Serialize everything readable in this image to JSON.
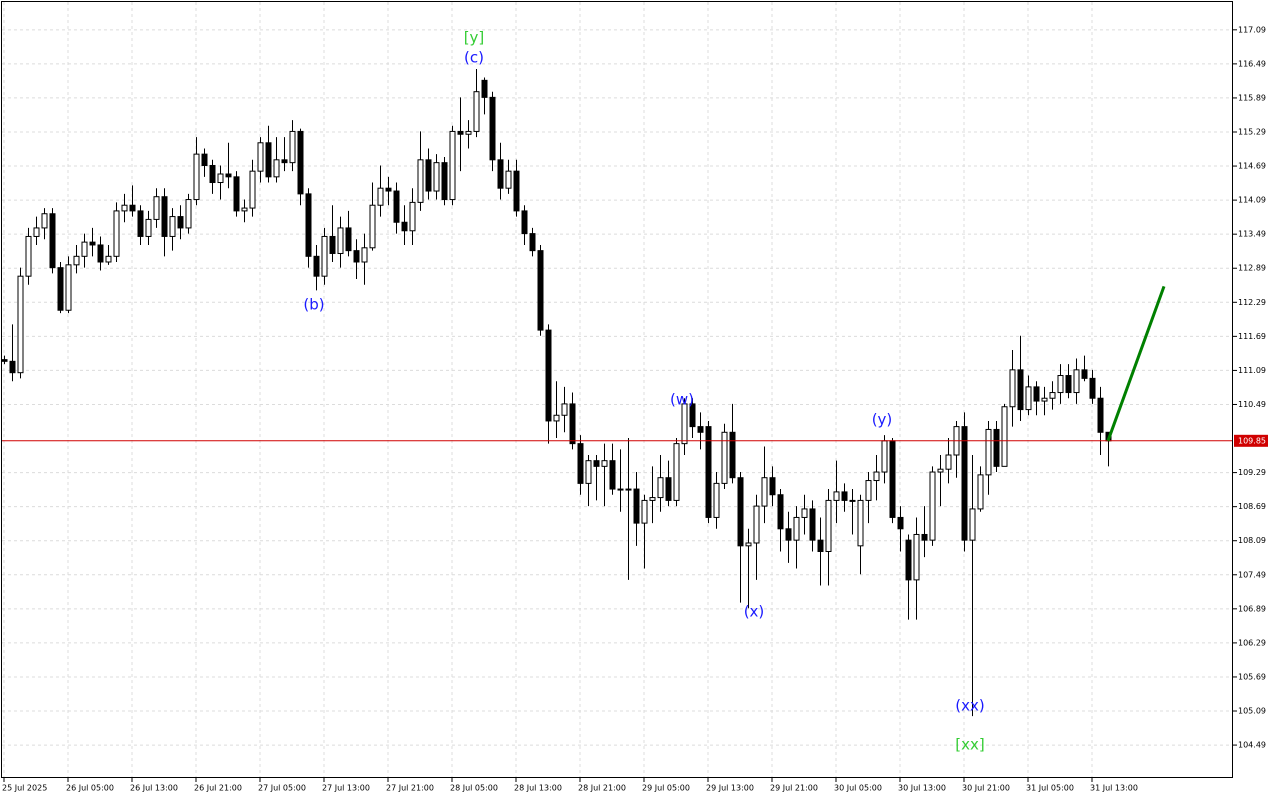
{
  "chart_data": {
    "type": "candlestick",
    "categories": [
      "25 Jul 2025",
      null,
      null,
      null,
      null,
      null,
      null,
      null,
      "26 Jul 05:00",
      null,
      null,
      null,
      null,
      null,
      null,
      null,
      "26 Jul 13:00",
      null,
      null,
      null,
      null,
      null,
      null,
      null,
      "26 Jul 21:00",
      null,
      null,
      null,
      null,
      null,
      null,
      null,
      "27 Jul 05:00",
      null,
      null,
      null,
      null,
      null,
      null,
      null,
      "27 Jul 13:00",
      null,
      null,
      null,
      null,
      null,
      null,
      null,
      "27 Jul 21:00",
      null,
      null,
      null,
      null,
      null,
      null,
      null,
      "28 Jul 05:00",
      null,
      null,
      null,
      null,
      null,
      null,
      null,
      "28 Jul 13:00",
      null,
      null,
      null,
      null,
      null,
      null,
      null,
      "28 Jul 21:00",
      null,
      null,
      null,
      null,
      null,
      null,
      null,
      "29 Jul 05:00",
      null,
      null,
      null,
      null,
      null,
      null,
      null,
      "29 Jul 13:00",
      null,
      null,
      null,
      null,
      null,
      null,
      null,
      "29 Jul 21:00",
      null,
      null,
      null,
      null,
      null,
      null,
      null,
      "30 Jul 05:00",
      null,
      null,
      null,
      null,
      null,
      null,
      null,
      "30 Jul 13:00",
      null,
      null,
      null,
      null,
      null,
      null,
      null,
      "30 Jul 21:00",
      null,
      null,
      null,
      null,
      null,
      null,
      null,
      "31 Jul 05:00",
      null,
      null,
      null,
      null,
      null,
      null,
      null,
      "31 Jul 13:00",
      null,
      null
    ],
    "ohlc": [
      [
        111.28,
        111.35,
        111.2,
        111.25
      ],
      [
        111.25,
        111.9,
        110.9,
        111.05
      ],
      [
        111.05,
        112.9,
        110.95,
        112.75
      ],
      [
        112.75,
        113.6,
        112.6,
        113.45
      ],
      [
        113.45,
        113.8,
        113.3,
        113.6
      ],
      [
        113.6,
        113.95,
        113.4,
        113.85
      ],
      [
        113.85,
        113.95,
        112.8,
        112.9
      ],
      [
        112.9,
        113.0,
        112.1,
        112.15
      ],
      [
        112.15,
        113.1,
        112.1,
        112.95
      ],
      [
        112.95,
        113.3,
        112.8,
        113.1
      ],
      [
        113.1,
        113.5,
        112.9,
        113.35
      ],
      [
        113.35,
        113.6,
        113.1,
        113.3
      ],
      [
        113.3,
        113.45,
        112.85,
        113.0
      ],
      [
        113.0,
        113.3,
        112.95,
        113.1
      ],
      [
        113.1,
        114.05,
        113.0,
        113.9
      ],
      [
        113.9,
        114.2,
        113.7,
        114.0
      ],
      [
        114.0,
        114.35,
        113.8,
        113.9
      ],
      [
        113.9,
        114.0,
        113.3,
        113.45
      ],
      [
        113.45,
        113.9,
        113.3,
        113.75
      ],
      [
        113.75,
        114.3,
        113.6,
        114.15
      ],
      [
        114.15,
        114.3,
        113.1,
        113.45
      ],
      [
        113.45,
        113.95,
        113.2,
        113.8
      ],
      [
        113.8,
        114.0,
        113.4,
        113.6
      ],
      [
        113.6,
        114.2,
        113.5,
        114.1
      ],
      [
        114.1,
        115.2,
        114.0,
        114.9
      ],
      [
        114.9,
        115.0,
        114.5,
        114.7
      ],
      [
        114.7,
        114.8,
        114.2,
        114.4
      ],
      [
        114.4,
        114.7,
        114.1,
        114.55
      ],
      [
        114.55,
        115.1,
        114.3,
        114.5
      ],
      [
        114.5,
        114.6,
        113.8,
        113.9
      ],
      [
        113.9,
        114.1,
        113.7,
        113.95
      ],
      [
        113.95,
        114.8,
        113.8,
        114.6
      ],
      [
        114.6,
        115.2,
        114.4,
        115.1
      ],
      [
        115.1,
        115.4,
        114.4,
        114.5
      ],
      [
        114.5,
        115.2,
        114.4,
        114.8
      ],
      [
        114.8,
        115.2,
        114.6,
        114.75
      ],
      [
        114.75,
        115.5,
        114.6,
        115.3
      ],
      [
        115.3,
        115.35,
        114.0,
        114.2
      ],
      [
        114.2,
        114.3,
        112.9,
        113.1
      ],
      [
        113.1,
        113.3,
        112.5,
        112.75
      ],
      [
        112.75,
        113.6,
        112.6,
        113.45
      ],
      [
        113.45,
        114.0,
        113.0,
        113.15
      ],
      [
        113.15,
        113.8,
        112.9,
        113.6
      ],
      [
        113.6,
        113.9,
        113.1,
        113.2
      ],
      [
        113.2,
        113.4,
        112.7,
        113.0
      ],
      [
        113.0,
        113.5,
        112.6,
        113.25
      ],
      [
        113.25,
        114.4,
        113.2,
        114.0
      ],
      [
        114.0,
        114.7,
        113.8,
        114.3
      ],
      [
        114.3,
        114.5,
        114.0,
        114.25
      ],
      [
        114.25,
        114.4,
        113.5,
        113.7
      ],
      [
        113.7,
        114.0,
        113.3,
        113.55
      ],
      [
        113.55,
        114.3,
        113.3,
        114.05
      ],
      [
        114.05,
        115.3,
        113.9,
        114.8
      ],
      [
        114.8,
        115.0,
        114.1,
        114.25
      ],
      [
        114.25,
        114.9,
        114.1,
        114.75
      ],
      [
        114.75,
        114.85,
        114.0,
        114.1
      ],
      [
        114.1,
        115.4,
        114.0,
        115.3
      ],
      [
        115.3,
        115.9,
        114.6,
        115.25
      ],
      [
        115.25,
        115.5,
        115.0,
        115.3
      ],
      [
        115.3,
        116.4,
        115.2,
        116.0
      ],
      [
        116.2,
        116.25,
        115.6,
        115.9
      ],
      [
        115.9,
        116.0,
        114.6,
        114.8
      ],
      [
        114.8,
        115.1,
        114.1,
        114.3
      ],
      [
        114.3,
        114.8,
        114.2,
        114.6
      ],
      [
        114.6,
        114.8,
        113.8,
        113.9
      ],
      [
        113.9,
        114.0,
        113.3,
        113.5
      ],
      [
        113.5,
        113.6,
        113.1,
        113.2
      ],
      [
        113.2,
        113.3,
        111.7,
        111.8
      ],
      [
        111.8,
        111.9,
        109.8,
        110.2
      ],
      [
        110.2,
        110.9,
        109.9,
        110.3
      ],
      [
        110.3,
        110.8,
        110.0,
        110.5
      ],
      [
        110.5,
        110.7,
        109.7,
        109.8
      ],
      [
        109.8,
        109.95,
        108.9,
        109.1
      ],
      [
        109.1,
        109.6,
        108.7,
        109.5
      ],
      [
        109.5,
        109.6,
        108.8,
        109.4
      ],
      [
        109.4,
        109.8,
        108.7,
        109.5
      ],
      [
        109.5,
        109.8,
        108.9,
        109.0
      ],
      [
        109.0,
        109.7,
        108.6,
        109.0
      ],
      [
        109.0,
        109.9,
        107.4,
        109.0
      ],
      [
        109.0,
        109.3,
        108.0,
        108.4
      ],
      [
        108.4,
        108.9,
        107.6,
        108.8
      ],
      [
        108.8,
        109.4,
        108.4,
        108.85
      ],
      [
        108.85,
        109.6,
        108.6,
        109.2
      ],
      [
        109.2,
        109.5,
        108.7,
        108.8
      ],
      [
        108.8,
        109.9,
        108.7,
        109.8
      ],
      [
        109.8,
        110.6,
        109.6,
        110.5
      ],
      [
        110.5,
        110.6,
        109.9,
        110.1
      ],
      [
        110.1,
        110.35,
        109.7,
        110.0
      ],
      [
        110.1,
        110.2,
        108.4,
        108.5
      ],
      [
        108.5,
        109.3,
        108.3,
        109.1
      ],
      [
        109.1,
        110.15,
        109.0,
        110.0
      ],
      [
        110.0,
        110.5,
        109.1,
        109.2
      ],
      [
        109.2,
        109.3,
        107.0,
        108.0
      ],
      [
        108.0,
        108.3,
        106.9,
        108.05
      ],
      [
        108.05,
        108.9,
        107.4,
        108.7
      ],
      [
        108.7,
        109.75,
        108.4,
        109.2
      ],
      [
        109.2,
        109.4,
        108.7,
        108.9
      ],
      [
        108.9,
        109.0,
        107.9,
        108.3
      ],
      [
        108.3,
        108.6,
        107.7,
        108.1
      ],
      [
        108.1,
        108.7,
        107.6,
        108.5
      ],
      [
        108.5,
        108.9,
        108.2,
        108.65
      ],
      [
        108.65,
        108.8,
        107.9,
        108.1
      ],
      [
        108.1,
        108.5,
        107.3,
        107.9
      ],
      [
        107.9,
        109.0,
        107.3,
        108.8
      ],
      [
        108.8,
        109.5,
        108.4,
        108.95
      ],
      [
        108.95,
        109.1,
        108.6,
        108.8
      ],
      [
        108.8,
        109.0,
        108.2,
        108.8
      ],
      [
        108.0,
        108.9,
        107.5,
        108.8
      ],
      [
        108.8,
        109.3,
        108.4,
        109.15
      ],
      [
        109.15,
        109.6,
        108.8,
        109.3
      ],
      [
        109.3,
        109.95,
        109.1,
        109.85
      ],
      [
        109.85,
        109.9,
        108.4,
        108.5
      ],
      [
        108.5,
        108.7,
        107.9,
        108.3
      ],
      [
        108.1,
        108.2,
        106.7,
        107.4
      ],
      [
        107.4,
        108.5,
        106.7,
        108.2
      ],
      [
        108.2,
        108.7,
        107.8,
        108.1
      ],
      [
        108.1,
        109.4,
        108.0,
        109.3
      ],
      [
        109.3,
        109.6,
        108.7,
        109.35
      ],
      [
        109.35,
        109.9,
        109.1,
        109.6
      ],
      [
        109.6,
        110.2,
        109.2,
        110.1
      ],
      [
        110.1,
        110.35,
        107.9,
        108.1
      ],
      [
        108.1,
        109.6,
        105.0,
        108.65
      ],
      [
        108.65,
        109.4,
        108.6,
        109.25
      ],
      [
        109.25,
        110.2,
        108.9,
        110.05
      ],
      [
        110.05,
        110.2,
        109.3,
        109.4
      ],
      [
        109.4,
        110.5,
        109.4,
        110.45
      ],
      [
        110.45,
        111.45,
        110.1,
        111.1
      ],
      [
        111.1,
        111.7,
        110.2,
        110.4
      ],
      [
        110.4,
        111.0,
        110.3,
        110.8
      ],
      [
        110.8,
        110.9,
        110.3,
        110.55
      ],
      [
        110.55,
        110.8,
        110.3,
        110.6
      ],
      [
        110.6,
        110.9,
        110.4,
        110.7
      ],
      [
        110.7,
        111.2,
        110.5,
        111.0
      ],
      [
        111.0,
        111.2,
        110.6,
        110.7
      ],
      [
        110.7,
        111.3,
        110.5,
        111.1
      ],
      [
        111.1,
        111.35,
        110.9,
        110.95
      ],
      [
        110.95,
        111.1,
        110.5,
        110.6
      ],
      [
        110.6,
        110.8,
        109.6,
        110.0
      ],
      [
        110.0,
        110.0,
        109.4,
        109.85
      ]
    ],
    "ylim": [
      103.91,
      117.58
    ],
    "yticks": [
      117.09,
      116.49,
      115.89,
      115.29,
      114.69,
      114.09,
      113.49,
      112.89,
      112.29,
      111.69,
      111.09,
      110.49,
      109.29,
      108.69,
      108.09,
      107.49,
      106.89,
      106.29,
      105.69,
      105.09,
      104.49
    ],
    "grid": true,
    "current_price": {
      "value": 109.85,
      "color": "#d00000"
    },
    "projection": {
      "target": 112.57,
      "color": "#008000"
    },
    "annotations": [
      {
        "text": "[y]",
        "color": "#33cc33"
      },
      {
        "text": "(c)",
        "color": "#1a1aff"
      },
      {
        "text": "(b)",
        "color": "#1a1aff"
      },
      {
        "text": "(w)",
        "color": "#1a1aff"
      },
      {
        "text": "(x)",
        "color": "#1a1aff"
      },
      {
        "text": "(y)",
        "color": "#1a1aff"
      },
      {
        "text": "(xx)",
        "color": "#1a1aff"
      },
      {
        "text": "[xx]",
        "color": "#33cc33"
      }
    ]
  }
}
